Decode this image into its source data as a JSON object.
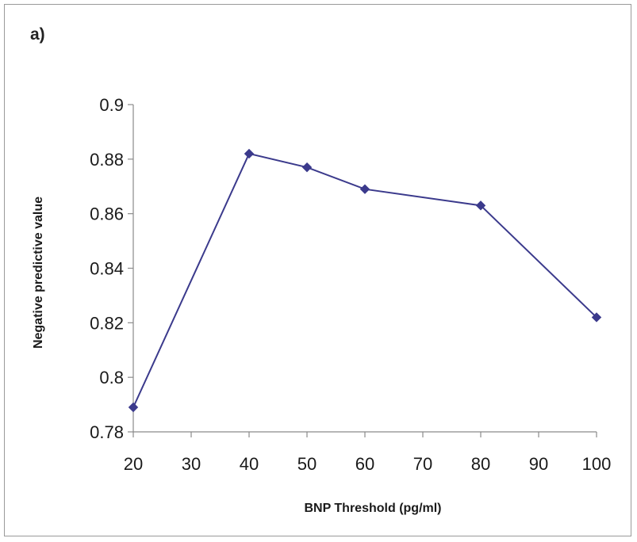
{
  "chart_data": {
    "type": "line",
    "panel_label": "a)",
    "title": "",
    "xlabel": "BNP Threshold (pg/ml)",
    "ylabel": "Negative predictive value",
    "x_ticks": [
      "20",
      "30",
      "40",
      "50",
      "60",
      "70",
      "80",
      "90",
      "100"
    ],
    "y_ticks": [
      "0.78",
      "0.8",
      "0.82",
      "0.84",
      "0.86",
      "0.88",
      "0.9"
    ],
    "xlim": [
      20,
      100
    ],
    "ylim": [
      0.78,
      0.9
    ],
    "grid": false,
    "legend": "none",
    "series": [
      {
        "color": "#3b3a8c",
        "marker": "diamond",
        "points": [
          {
            "x": 20,
            "y": 0.789
          },
          {
            "x": 40,
            "y": 0.882
          },
          {
            "x": 50,
            "y": 0.877
          },
          {
            "x": 60,
            "y": 0.869
          },
          {
            "x": 80,
            "y": 0.863
          },
          {
            "x": 100,
            "y": 0.822
          }
        ]
      }
    ]
  }
}
